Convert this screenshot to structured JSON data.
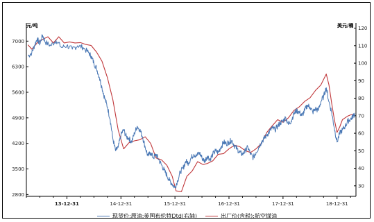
{
  "chart_data": {
    "type": "line",
    "left_axis_unit": "元/吨",
    "right_axis_unit": "美元/桶",
    "left_ticks": [
      2800,
      3500,
      4200,
      4900,
      5600,
      6300,
      7000
    ],
    "left_ylim": [
      2750,
      7500
    ],
    "right_ticks": [
      30,
      40,
      50,
      60,
      70,
      80,
      90,
      100,
      110,
      120
    ],
    "right_ylim": [
      24,
      123
    ],
    "x_labels": [
      {
        "label": "13-12-31",
        "bold": true
      },
      {
        "label": "14-12-31",
        "bold": false
      },
      {
        "label": "15-12-31",
        "bold": false
      },
      {
        "label": "16-12-31",
        "bold": false
      },
      {
        "label": "17-12-31",
        "bold": false
      },
      {
        "label": "18-12-31",
        "bold": false
      }
    ],
    "x_range": [
      -0.75,
      5.35
    ],
    "grid": false,
    "legend_position": "bottom",
    "series": [
      {
        "name": "现货价:原油:英国布伦特Dtd(右轴)",
        "axis": "right",
        "color": "#4a78b5",
        "points": [
          [
            -0.72,
            104
          ],
          [
            -0.65,
            106
          ],
          [
            -0.6,
            110
          ],
          [
            -0.55,
            114
          ],
          [
            -0.5,
            111
          ],
          [
            -0.45,
            116
          ],
          [
            -0.4,
            112
          ],
          [
            -0.3,
            110
          ],
          [
            -0.2,
            113
          ],
          [
            -0.1,
            109
          ],
          [
            0.0,
            110
          ],
          [
            0.1,
            108
          ],
          [
            0.2,
            110
          ],
          [
            0.3,
            109
          ],
          [
            0.4,
            106
          ],
          [
            0.45,
            104
          ],
          [
            0.5,
            100
          ],
          [
            0.55,
            97
          ],
          [
            0.6,
            92
          ],
          [
            0.65,
            86
          ],
          [
            0.7,
            80
          ],
          [
            0.75,
            75
          ],
          [
            0.8,
            68
          ],
          [
            0.85,
            57
          ],
          [
            0.9,
            50
          ],
          [
            0.95,
            52
          ],
          [
            1.0,
            59
          ],
          [
            1.05,
            62
          ],
          [
            1.1,
            58
          ],
          [
            1.15,
            57
          ],
          [
            1.2,
            55
          ],
          [
            1.25,
            60
          ],
          [
            1.3,
            64
          ],
          [
            1.35,
            62
          ],
          [
            1.4,
            58
          ],
          [
            1.45,
            52
          ],
          [
            1.5,
            47
          ],
          [
            1.55,
            49
          ],
          [
            1.6,
            46
          ],
          [
            1.65,
            48
          ],
          [
            1.7,
            45
          ],
          [
            1.75,
            42
          ],
          [
            1.8,
            39
          ],
          [
            1.85,
            36
          ],
          [
            1.9,
            33
          ],
          [
            1.95,
            31
          ],
          [
            2.0,
            29
          ],
          [
            2.05,
            33
          ],
          [
            2.1,
            38
          ],
          [
            2.15,
            40
          ],
          [
            2.2,
            44
          ],
          [
            2.25,
            43
          ],
          [
            2.3,
            46
          ],
          [
            2.35,
            48
          ],
          [
            2.4,
            47
          ],
          [
            2.45,
            49
          ],
          [
            2.5,
            46
          ],
          [
            2.55,
            44
          ],
          [
            2.6,
            47
          ],
          [
            2.65,
            45
          ],
          [
            2.7,
            48
          ],
          [
            2.75,
            50
          ],
          [
            2.8,
            49
          ],
          [
            2.85,
            52
          ],
          [
            2.9,
            55
          ],
          [
            2.95,
            54
          ],
          [
            3.0,
            55
          ],
          [
            3.05,
            56
          ],
          [
            3.1,
            53
          ],
          [
            3.15,
            51
          ],
          [
            3.2,
            49
          ],
          [
            3.25,
            48
          ],
          [
            3.3,
            50
          ],
          [
            3.35,
            52
          ],
          [
            3.4,
            48
          ],
          [
            3.45,
            46
          ],
          [
            3.5,
            49
          ],
          [
            3.55,
            52
          ],
          [
            3.6,
            55
          ],
          [
            3.65,
            57
          ],
          [
            3.7,
            59
          ],
          [
            3.75,
            61
          ],
          [
            3.8,
            63
          ],
          [
            3.85,
            62
          ],
          [
            3.9,
            64
          ],
          [
            3.95,
            66
          ],
          [
            4.0,
            67
          ],
          [
            4.05,
            69
          ],
          [
            4.1,
            65
          ],
          [
            4.15,
            67
          ],
          [
            4.2,
            71
          ],
          [
            4.25,
            73
          ],
          [
            4.3,
            72
          ],
          [
            4.35,
            70
          ],
          [
            4.4,
            73
          ],
          [
            4.45,
            76
          ],
          [
            4.5,
            75
          ],
          [
            4.55,
            72
          ],
          [
            4.6,
            74
          ],
          [
            4.65,
            73
          ],
          [
            4.7,
            78
          ],
          [
            4.75,
            81
          ],
          [
            4.8,
            86
          ],
          [
            4.85,
            78
          ],
          [
            4.9,
            72
          ],
          [
            4.95,
            63
          ],
          [
            5.0,
            55
          ],
          [
            5.05,
            60
          ],
          [
            5.1,
            62
          ],
          [
            5.15,
            64
          ],
          [
            5.2,
            67
          ],
          [
            5.25,
            68
          ],
          [
            5.3,
            70
          ],
          [
            5.33,
            71
          ]
        ]
      },
      {
        "name": "出厂价(含税):航空煤油",
        "axis": "left",
        "color": "#c0373a",
        "points": [
          [
            -0.72,
            6900
          ],
          [
            -0.65,
            6780
          ],
          [
            -0.55,
            6950
          ],
          [
            -0.45,
            7050
          ],
          [
            -0.35,
            7120
          ],
          [
            -0.25,
            6950
          ],
          [
            -0.15,
            7120
          ],
          [
            -0.05,
            6950
          ],
          [
            0.05,
            6980
          ],
          [
            0.15,
            6950
          ],
          [
            0.25,
            6960
          ],
          [
            0.35,
            6910
          ],
          [
            0.45,
            6880
          ],
          [
            0.55,
            6700
          ],
          [
            0.65,
            6450
          ],
          [
            0.75,
            6000
          ],
          [
            0.85,
            5400
          ],
          [
            0.95,
            4560
          ],
          [
            1.05,
            4050
          ],
          [
            1.15,
            4220
          ],
          [
            1.25,
            4270
          ],
          [
            1.35,
            4300
          ],
          [
            1.45,
            4380
          ],
          [
            1.55,
            4200
          ],
          [
            1.65,
            3800
          ],
          [
            1.75,
            3750
          ],
          [
            1.85,
            3600
          ],
          [
            1.95,
            3300
          ],
          [
            2.02,
            2900
          ],
          [
            2.12,
            2880
          ],
          [
            2.22,
            3300
          ],
          [
            2.32,
            3450
          ],
          [
            2.42,
            3700
          ],
          [
            2.52,
            3620
          ],
          [
            2.6,
            3650
          ],
          [
            2.7,
            3720
          ],
          [
            2.8,
            3900
          ],
          [
            2.9,
            3920
          ],
          [
            3.0,
            4050
          ],
          [
            3.1,
            4150
          ],
          [
            3.2,
            4110
          ],
          [
            3.3,
            4000
          ],
          [
            3.4,
            3950
          ],
          [
            3.5,
            4050
          ],
          [
            3.6,
            4200
          ],
          [
            3.7,
            4500
          ],
          [
            3.8,
            4680
          ],
          [
            3.9,
            4850
          ],
          [
            4.0,
            4780
          ],
          [
            4.1,
            4900
          ],
          [
            4.2,
            5100
          ],
          [
            4.3,
            5200
          ],
          [
            4.4,
            5350
          ],
          [
            4.5,
            5450
          ],
          [
            4.6,
            5650
          ],
          [
            4.7,
            5800
          ],
          [
            4.8,
            6100
          ],
          [
            4.85,
            5800
          ],
          [
            4.9,
            5300
          ],
          [
            4.95,
            4850
          ],
          [
            5.0,
            4500
          ],
          [
            5.05,
            4650
          ],
          [
            5.1,
            4850
          ],
          [
            5.15,
            4900
          ],
          [
            5.2,
            4950
          ],
          [
            5.25,
            4980
          ],
          [
            5.3,
            5000
          ]
        ]
      }
    ]
  }
}
